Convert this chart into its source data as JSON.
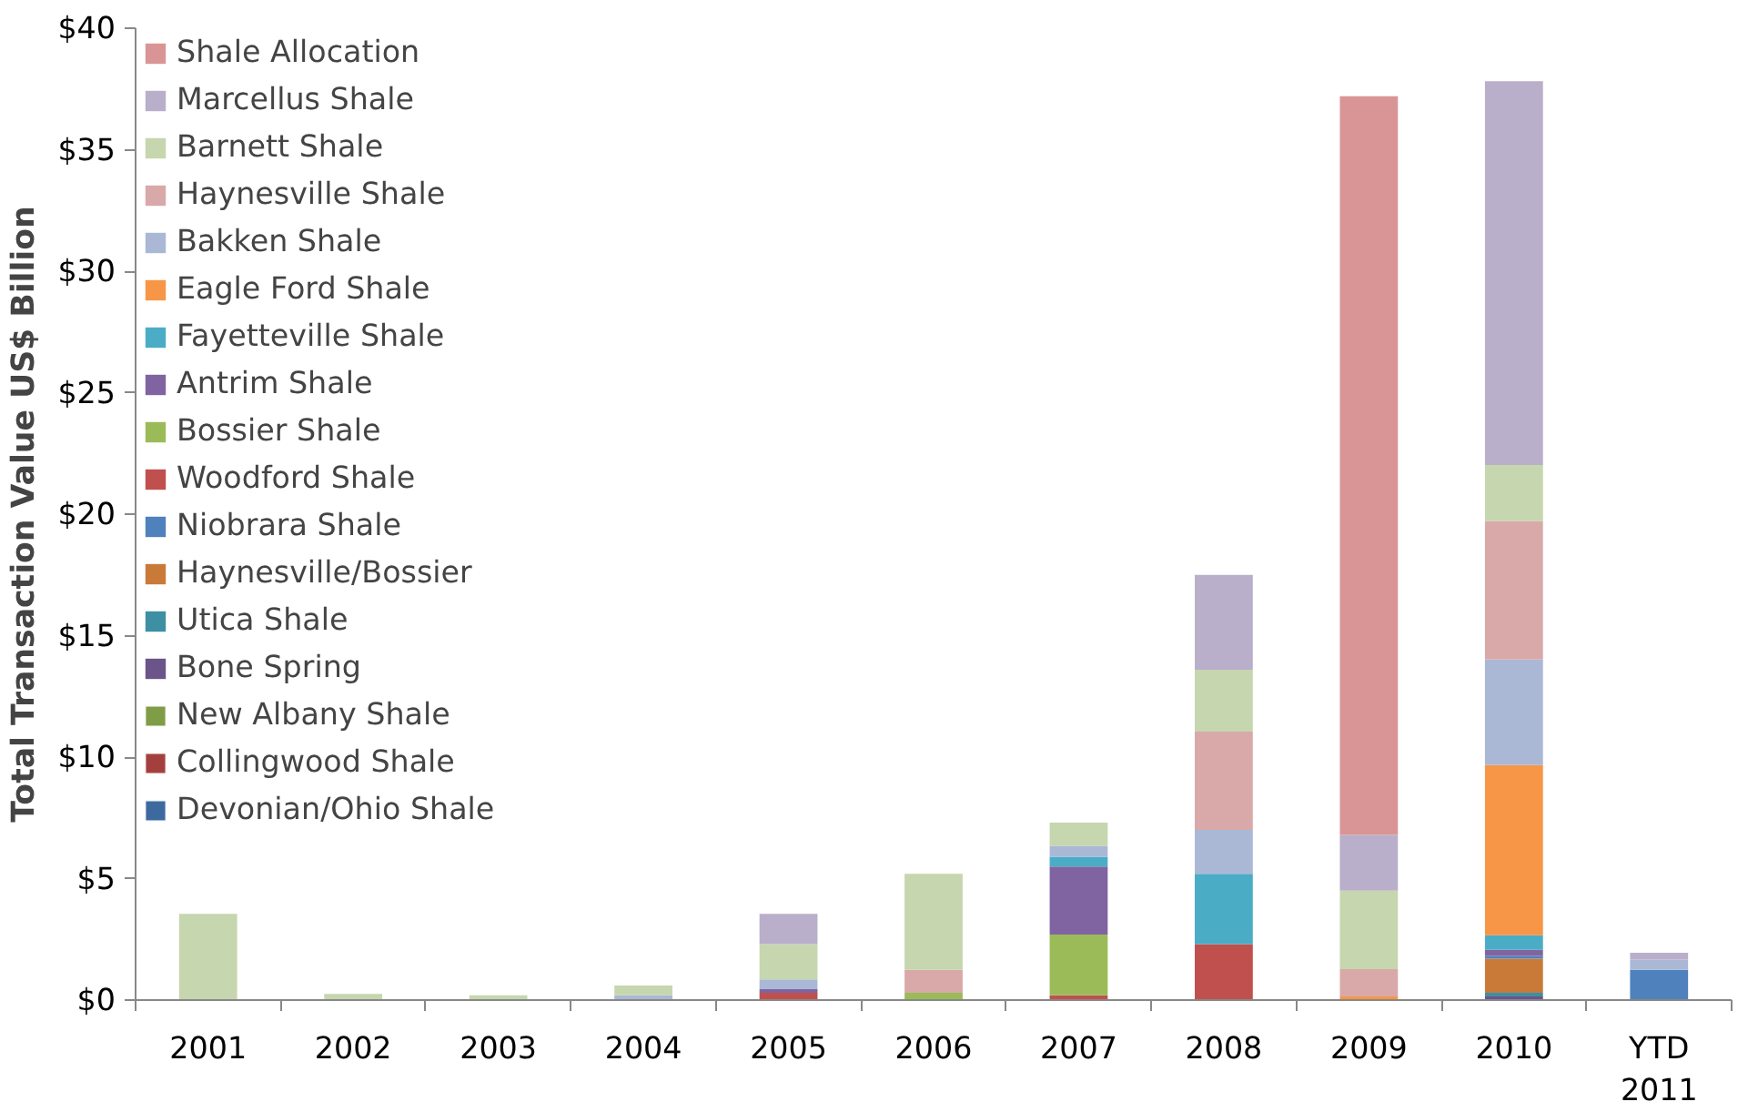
{
  "chart_data": {
    "type": "bar",
    "stacked": true,
    "ylabel": "Total Transaction Value US$ Billion",
    "categories": [
      "2001",
      "2002",
      "2003",
      "2004",
      "2005",
      "2006",
      "2007",
      "2008",
      "2009",
      "2010",
      "YTD\n2011"
    ],
    "ylim": [
      0,
      40
    ],
    "yticks": [
      {
        "value": 0,
        "label": "$0"
      },
      {
        "value": 5,
        "label": "$5"
      },
      {
        "value": 10,
        "label": "$10"
      },
      {
        "value": 15,
        "label": "$15"
      },
      {
        "value": 20,
        "label": "$20"
      },
      {
        "value": 25,
        "label": "$25"
      },
      {
        "value": 30,
        "label": "$30"
      },
      {
        "value": 35,
        "label": "$35"
      },
      {
        "value": 40,
        "label": "$40"
      }
    ],
    "grid": false,
    "legend": "top left",
    "series": [
      {
        "name": "Devonian/Ohio Shale",
        "color": "#3d6a9e",
        "values": [
          null,
          null,
          null,
          null,
          null,
          null,
          null,
          null,
          null,
          null,
          null
        ]
      },
      {
        "name": "Collingwood Shale",
        "color": "#a3403e",
        "values": [
          null,
          null,
          null,
          null,
          null,
          null,
          null,
          null,
          null,
          null,
          null
        ]
      },
      {
        "name": "New Albany Shale",
        "color": "#7f9c46",
        "values": [
          null,
          null,
          null,
          null,
          null,
          null,
          null,
          null,
          null,
          null,
          null
        ]
      },
      {
        "name": "Bone Spring",
        "color": "#6a548a",
        "values": [
          null,
          null,
          null,
          null,
          null,
          null,
          null,
          null,
          null,
          0.15,
          null
        ]
      },
      {
        "name": "Utica Shale",
        "color": "#3d8fa4",
        "values": [
          null,
          null,
          null,
          null,
          null,
          null,
          null,
          null,
          null,
          0.15,
          null
        ]
      },
      {
        "name": "Haynesville/Bossier",
        "color": "#ca7a38",
        "values": [
          null,
          null,
          null,
          null,
          null,
          null,
          null,
          null,
          null,
          1.4,
          null
        ]
      },
      {
        "name": "Niobrara Shale",
        "color": "#4f81bd",
        "values": [
          null,
          null,
          null,
          null,
          null,
          null,
          null,
          null,
          null,
          0.12,
          1.25
        ]
      },
      {
        "name": "Woodford Shale",
        "color": "#c0504d",
        "values": [
          null,
          null,
          null,
          null,
          0.3,
          null,
          0.2,
          2.3,
          null,
          null,
          null
        ]
      },
      {
        "name": "Bossier Shale",
        "color": "#9bbb59",
        "values": [
          null,
          null,
          null,
          null,
          null,
          0.3,
          2.5,
          null,
          null,
          null,
          null
        ]
      },
      {
        "name": "Antrim Shale",
        "color": "#8064a2",
        "values": [
          null,
          null,
          null,
          null,
          0.15,
          null,
          2.8,
          null,
          null,
          0.25,
          null
        ]
      },
      {
        "name": "Fayetteville Shale",
        "color": "#4bacc6",
        "values": [
          null,
          null,
          null,
          null,
          null,
          null,
          0.4,
          2.9,
          null,
          0.6,
          null
        ]
      },
      {
        "name": "Eagle Ford Shale",
        "color": "#f79646",
        "values": [
          null,
          null,
          null,
          null,
          null,
          null,
          null,
          null,
          0.15,
          7.0,
          null
        ]
      },
      {
        "name": "Bakken Shale",
        "color": "#aab8d6",
        "values": [
          null,
          null,
          null,
          0.2,
          0.4,
          null,
          0.45,
          1.8,
          null,
          4.35,
          0.42
        ]
      },
      {
        "name": "Haynesville Shale",
        "color": "#d9a9a9",
        "values": [
          null,
          null,
          null,
          null,
          null,
          0.95,
          null,
          4.05,
          1.12,
          5.7,
          null
        ]
      },
      {
        "name": "Barnett Shale",
        "color": "#c6d6ae",
        "values": [
          3.55,
          0.25,
          0.2,
          0.4,
          1.45,
          3.95,
          0.95,
          2.55,
          3.23,
          2.3,
          null
        ]
      },
      {
        "name": "Marcellus Shale",
        "color": "#b9afca",
        "values": [
          null,
          null,
          null,
          null,
          1.25,
          null,
          null,
          3.9,
          2.3,
          15.8,
          0.28
        ]
      },
      {
        "name": "Shale Allocation",
        "color": "#d99595",
        "values": [
          null,
          null,
          null,
          null,
          null,
          null,
          null,
          null,
          30.4,
          null,
          null
        ]
      }
    ]
  }
}
